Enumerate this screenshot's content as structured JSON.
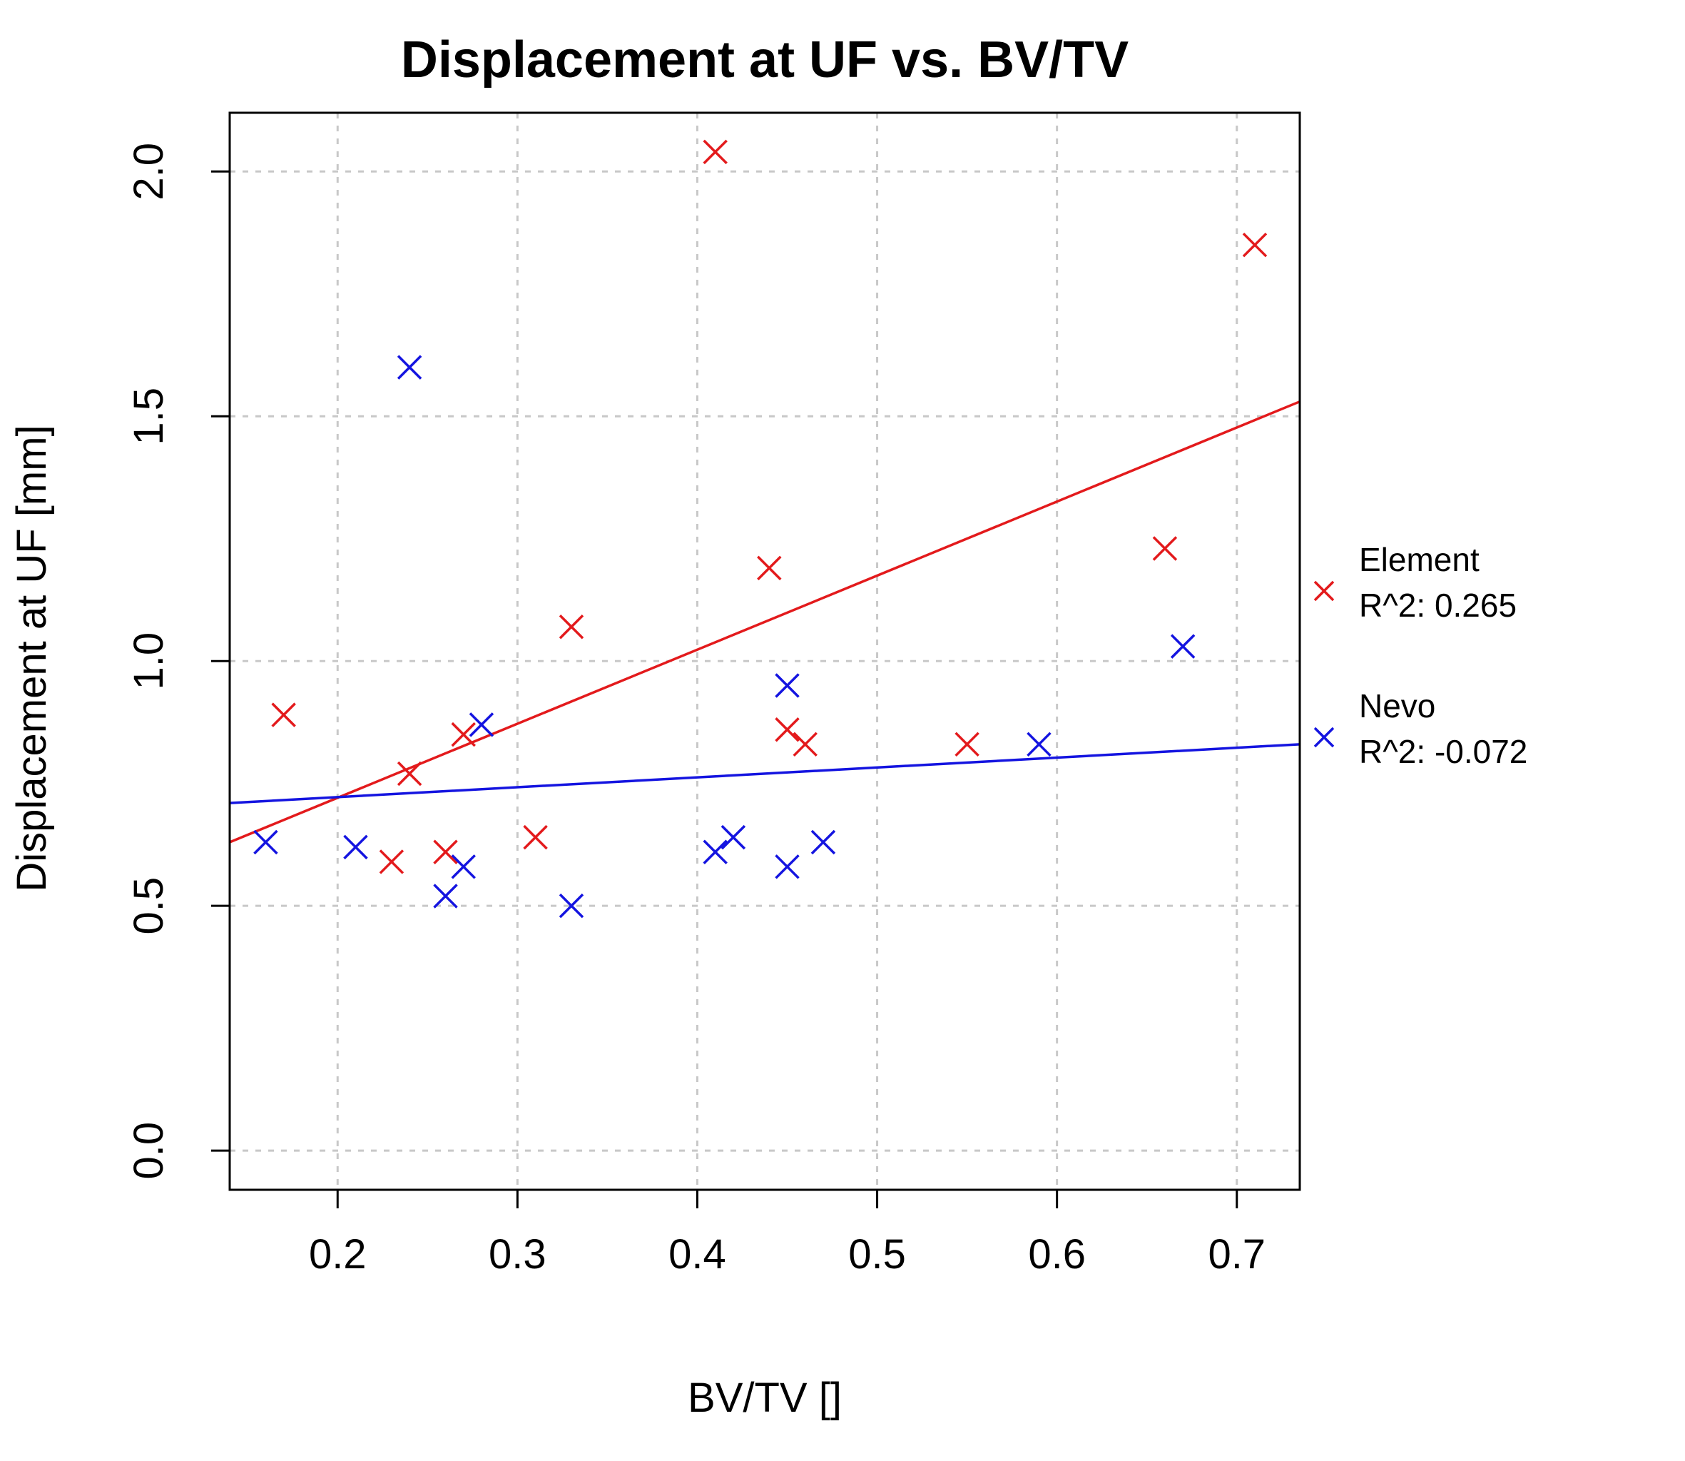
{
  "chart_data": {
    "type": "scatter",
    "title": "Displacement at UF vs. BV/TV",
    "xlabel": "BV/TV []",
    "ylabel": "Displacement at UF [mm]",
    "xlim": [
      0.14,
      0.735
    ],
    "ylim": [
      -0.08,
      2.12
    ],
    "xticks": [
      0.2,
      0.3,
      0.4,
      0.5,
      0.6,
      0.7
    ],
    "xtick_labels": [
      "0.2",
      "0.3",
      "0.4",
      "0.5",
      "0.6",
      "0.7"
    ],
    "yticks": [
      0.0,
      0.5,
      1.0,
      1.5,
      2.0
    ],
    "ytick_labels": [
      "0.0",
      "0.5",
      "1.0",
      "1.5",
      "2.0"
    ],
    "grid": true,
    "legend_position": "right",
    "series": [
      {
        "name": "Element",
        "annotation": "R^2: 0.265",
        "color": "#e31a1c",
        "marker": "x",
        "x": [
          0.17,
          0.23,
          0.24,
          0.26,
          0.27,
          0.31,
          0.33,
          0.41,
          0.44,
          0.45,
          0.46,
          0.55,
          0.66,
          0.71
        ],
        "y": [
          0.89,
          0.59,
          0.77,
          0.61,
          0.85,
          0.64,
          1.07,
          2.04,
          1.19,
          0.86,
          0.83,
          0.83,
          1.23,
          1.85
        ],
        "fit_line": {
          "x": [
            0.14,
            0.735
          ],
          "y": [
            0.63,
            1.53
          ]
        }
      },
      {
        "name": "Nevo",
        "annotation": "R^2: -0.072",
        "color": "#1414e0",
        "marker": "x",
        "x": [
          0.16,
          0.21,
          0.24,
          0.26,
          0.27,
          0.28,
          0.33,
          0.41,
          0.42,
          0.45,
          0.45,
          0.47,
          0.59,
          0.67
        ],
        "y": [
          0.63,
          0.62,
          1.6,
          0.52,
          0.58,
          0.87,
          0.5,
          0.61,
          0.64,
          0.58,
          0.95,
          0.63,
          0.83,
          1.03
        ],
        "fit_line": {
          "x": [
            0.14,
            0.735
          ],
          "y": [
            0.71,
            0.83
          ]
        }
      }
    ]
  }
}
